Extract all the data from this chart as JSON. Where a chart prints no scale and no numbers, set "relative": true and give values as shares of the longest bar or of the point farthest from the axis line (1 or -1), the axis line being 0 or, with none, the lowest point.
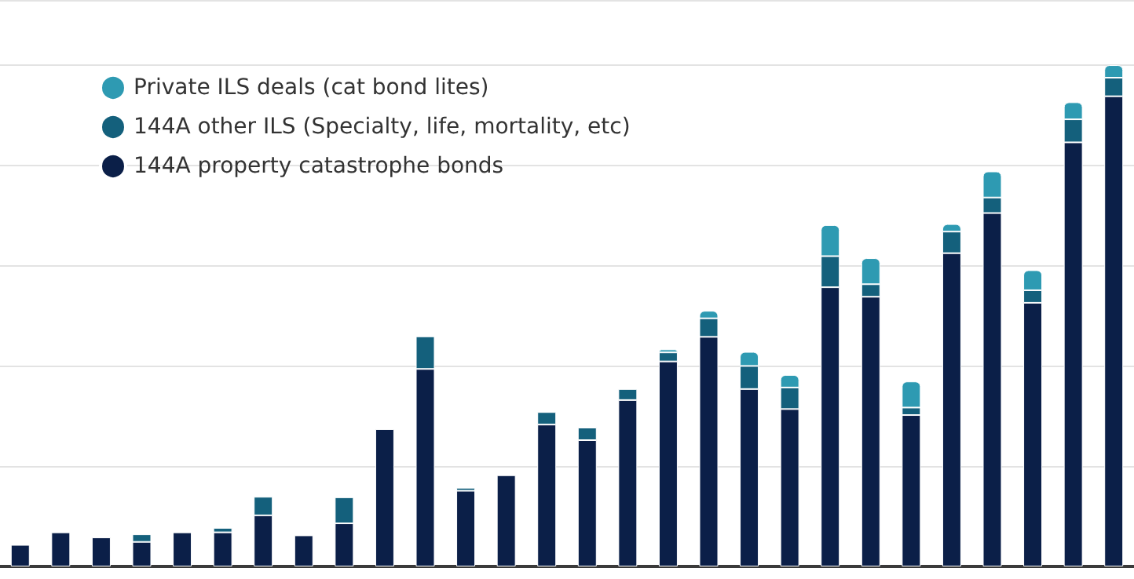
{
  "chart_data": {
    "type": "bar",
    "stacked": true,
    "relative": true,
    "grid": "y",
    "legend": "top left",
    "categories": [
      null,
      null,
      null,
      null,
      null,
      null,
      null,
      null,
      null,
      null,
      null,
      null,
      null,
      null,
      null,
      null,
      null,
      null,
      null,
      null,
      null,
      null,
      null,
      null,
      null,
      null,
      null,
      null
    ],
    "series": [
      {
        "name": "144A property catastrophe bonds",
        "color": "#0b1f48",
        "values": [
          0.043,
          0.068,
          0.058,
          0.049,
          0.068,
          0.068,
          0.102,
          0.062,
          0.086,
          0.274,
          0.394,
          0.151,
          0.182,
          0.283,
          0.252,
          0.332,
          0.409,
          0.458,
          0.354,
          0.314,
          0.557,
          0.538,
          0.302,
          0.625,
          0.705,
          0.526,
          0.846,
          0.938
        ]
      },
      {
        "name": "144A other ILS (Specialty, life, mortality, etc)",
        "color": "#14607c",
        "values": [
          null,
          null,
          null,
          0.015,
          null,
          0.009,
          0.037,
          null,
          0.052,
          null,
          0.065,
          0.006,
          null,
          0.025,
          0.025,
          0.022,
          0.018,
          0.037,
          0.046,
          0.043,
          0.062,
          0.025,
          0.015,
          0.043,
          0.031,
          0.025,
          0.046,
          0.037
        ]
      },
      {
        "name": "Private ILS deals (cat bond lites)",
        "color": "#2e9ab2",
        "values": [
          null,
          null,
          null,
          null,
          null,
          null,
          null,
          null,
          null,
          null,
          null,
          null,
          null,
          null,
          null,
          null,
          0.006,
          0.015,
          0.028,
          0.025,
          0.062,
          0.052,
          0.052,
          0.015,
          0.052,
          0.04,
          0.034,
          0.025
        ]
      }
    ]
  }
}
